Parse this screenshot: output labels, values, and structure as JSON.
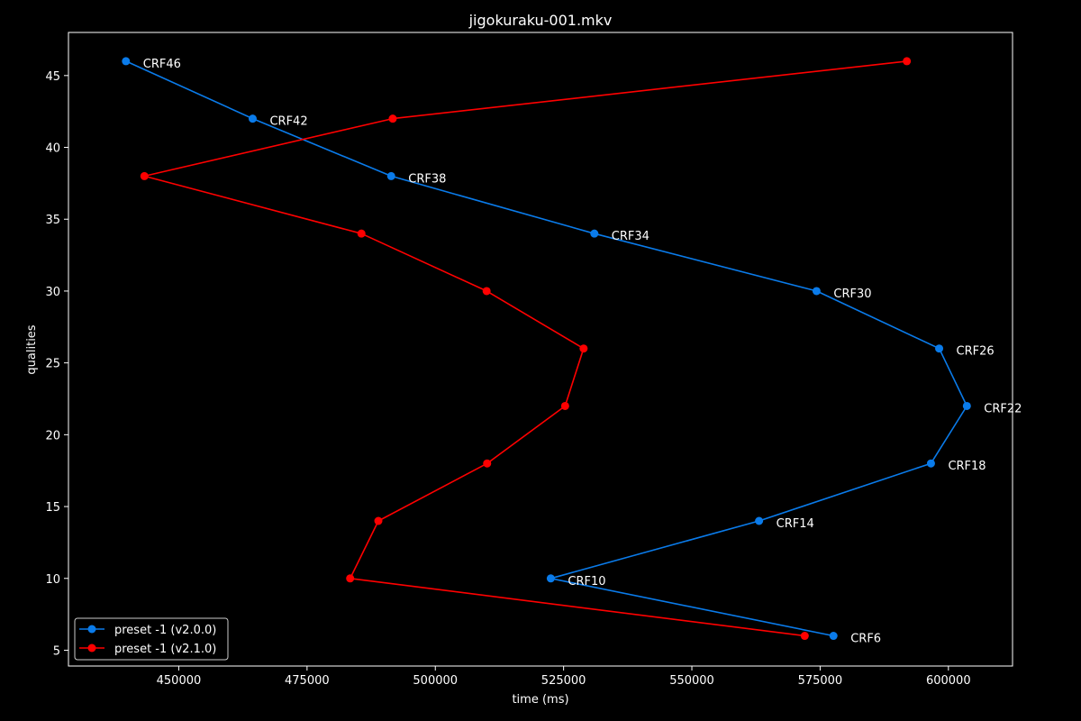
{
  "chart_data": {
    "type": "line",
    "title": "jigokuraku-001.mkv",
    "xlabel": "time (ms)",
    "ylabel": "qualities",
    "xlim": [
      428500,
      612500
    ],
    "ylim": [
      3.9,
      48.0
    ],
    "xticks": [
      450000,
      475000,
      500000,
      525000,
      550000,
      575000,
      600000
    ],
    "yticks": [
      5,
      10,
      15,
      20,
      25,
      30,
      35,
      40,
      45
    ],
    "grid": false,
    "legend_position": "lower-left",
    "series": [
      {
        "name": "preset -1 (v2.0.0)",
        "color": "#0a7bea",
        "points": [
          {
            "x": 439700,
            "y": 46,
            "label": "CRF46"
          },
          {
            "x": 464400,
            "y": 42,
            "label": "CRF42"
          },
          {
            "x": 491400,
            "y": 38,
            "label": "CRF38"
          },
          {
            "x": 531000,
            "y": 34,
            "label": "CRF34"
          },
          {
            "x": 574300,
            "y": 30,
            "label": "CRF30"
          },
          {
            "x": 598200,
            "y": 26,
            "label": "CRF26"
          },
          {
            "x": 603600,
            "y": 22,
            "label": "CRF22"
          },
          {
            "x": 596600,
            "y": 18,
            "label": "CRF18"
          },
          {
            "x": 563100,
            "y": 14,
            "label": "CRF14"
          },
          {
            "x": 522500,
            "y": 10,
            "label": "CRF10"
          },
          {
            "x": 577600,
            "y": 6,
            "label": "CRF6"
          }
        ]
      },
      {
        "name": "preset -1 (v2.1.0)",
        "color": "#ff0000",
        "points": [
          {
            "x": 591900,
            "y": 46
          },
          {
            "x": 491700,
            "y": 42
          },
          {
            "x": 443300,
            "y": 38
          },
          {
            "x": 485600,
            "y": 34
          },
          {
            "x": 510000,
            "y": 30
          },
          {
            "x": 528900,
            "y": 26
          },
          {
            "x": 525300,
            "y": 22
          },
          {
            "x": 510100,
            "y": 18
          },
          {
            "x": 488900,
            "y": 14
          },
          {
            "x": 483400,
            "y": 10
          },
          {
            "x": 572000,
            "y": 6
          }
        ]
      }
    ]
  }
}
